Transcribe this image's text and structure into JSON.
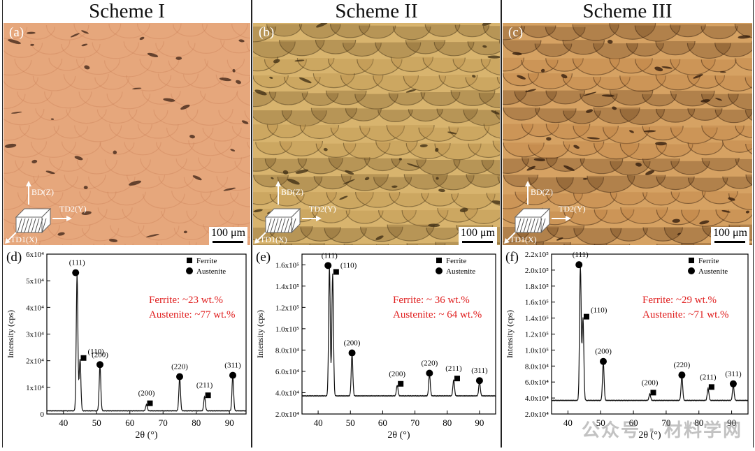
{
  "columns": [
    {
      "title": "Scheme I",
      "label": "(a)",
      "tone": [
        "#e6a77c",
        "#d48e65",
        "#c97f56"
      ],
      "dark": "#3a2014"
    },
    {
      "title": "Scheme II",
      "label": "(b)",
      "tone": [
        "#d8b46e",
        "#b88f4a",
        "#7a5c2c"
      ],
      "dark": "#3a2a12"
    },
    {
      "title": "Scheme III",
      "label": "(c)",
      "tone": [
        "#d6a263",
        "#b97d42",
        "#6e4420"
      ],
      "dark": "#2a1608"
    }
  ],
  "scalebar": "100 μm",
  "axes_labels": {
    "bd": "BD(Z)",
    "td2": "TD2(Y)",
    "td1": "TD1(X)"
  },
  "chart_data": [
    {
      "type": "line",
      "panel": "(d)",
      "xlabel": "2θ (°)",
      "ylabel": "Intensity (cps)",
      "xlim": [
        35,
        95
      ],
      "ylim": [
        0,
        60000
      ],
      "yticks": [
        {
          "v": 0,
          "t": "0"
        },
        {
          "v": 10000,
          "t": "1x10⁴"
        },
        {
          "v": 20000,
          "t": "2x10⁴"
        },
        {
          "v": 30000,
          "t": "3x10⁴"
        },
        {
          "v": 40000,
          "t": "4x10⁴"
        },
        {
          "v": 50000,
          "t": "5x10⁴"
        },
        {
          "v": 60000,
          "t": "6x10⁴"
        }
      ],
      "xticks": [
        40,
        50,
        60,
        70,
        80,
        90
      ],
      "baseline": 1200,
      "peaks": [
        {
          "x": 44.1,
          "y": 52500,
          "label": "(111)",
          "phase": "austenite"
        },
        {
          "x": 45.0,
          "y": 20500,
          "label": "(110)",
          "phase": "ferrite"
        },
        {
          "x": 51.0,
          "y": 18000,
          "label": "(200)",
          "phase": "austenite"
        },
        {
          "x": 65.0,
          "y": 3500,
          "label": "(200)",
          "phase": "ferrite"
        },
        {
          "x": 75.0,
          "y": 13500,
          "label": "(220)",
          "phase": "austenite"
        },
        {
          "x": 82.5,
          "y": 6500,
          "label": "(211)",
          "phase": "ferrite"
        },
        {
          "x": 91.0,
          "y": 14000,
          "label": "(311)",
          "phase": "austenite"
        }
      ],
      "legend": {
        "ferrite": "Ferrite",
        "austenite": "Austenite"
      },
      "annotation": [
        "Ferrite: ~23 wt.%",
        "Austenite: ~77 wt.%"
      ]
    },
    {
      "type": "line",
      "panel": "(e)",
      "xlabel": "2θ (°)",
      "ylabel": "Intensity (cps)",
      "xlim": [
        35,
        95
      ],
      "ylim": [
        20000,
        170000
      ],
      "yticks": [
        {
          "v": 20000,
          "t": "2.0x10⁴"
        },
        {
          "v": 40000,
          "t": "4.0x10⁴"
        },
        {
          "v": 60000,
          "t": "6.0x10⁴"
        },
        {
          "v": 80000,
          "t": "8.0x10⁴"
        },
        {
          "v": 100000,
          "t": "1.0x10⁵"
        },
        {
          "v": 120000,
          "t": "1.2x10⁵"
        },
        {
          "v": 140000,
          "t": "1.4x10⁵"
        },
        {
          "v": 160000,
          "t": "1.6x10⁵"
        }
      ],
      "xticks": [
        40,
        50,
        60,
        70,
        80,
        90
      ],
      "baseline": 37000,
      "peaks": [
        {
          "x": 43.5,
          "y": 158000,
          "label": "(111)",
          "phase": "austenite"
        },
        {
          "x": 44.5,
          "y": 152000,
          "label": "(110)",
          "phase": "ferrite"
        },
        {
          "x": 50.5,
          "y": 76000,
          "label": "(200)",
          "phase": "austenite"
        },
        {
          "x": 64.5,
          "y": 47000,
          "label": "(200)",
          "phase": "ferrite"
        },
        {
          "x": 74.5,
          "y": 57000,
          "label": "(220)",
          "phase": "austenite"
        },
        {
          "x": 82.0,
          "y": 52000,
          "label": "(211)",
          "phase": "ferrite"
        },
        {
          "x": 90.0,
          "y": 50000,
          "label": "(311)",
          "phase": "austenite"
        }
      ],
      "legend": {
        "ferrite": "Ferrite",
        "austenite": "Austenite"
      },
      "annotation": [
        "Ferrite: ~ 36 wt.%",
        "Austenite: ~ 64 wt.%"
      ]
    },
    {
      "type": "line",
      "panel": "(f)",
      "xlabel": "2θ (°)",
      "ylabel": "Intensity (cps)",
      "xlim": [
        35,
        95
      ],
      "ylim": [
        20000,
        220000
      ],
      "yticks": [
        {
          "v": 20000,
          "t": "2.0x10⁴"
        },
        {
          "v": 40000,
          "t": "4.0x10⁴"
        },
        {
          "v": 60000,
          "t": "6.0x10⁴"
        },
        {
          "v": 80000,
          "t": "8.0x10⁴"
        },
        {
          "v": 100000,
          "t": "1.0x10⁵"
        },
        {
          "v": 120000,
          "t": "1.2x10⁵"
        },
        {
          "v": 140000,
          "t": "1.4x10⁵"
        },
        {
          "v": 160000,
          "t": "1.6x10⁵"
        },
        {
          "v": 180000,
          "t": "1.8x10⁵"
        },
        {
          "v": 200000,
          "t": "2.0x10⁵"
        },
        {
          "v": 220000,
          "t": "2.2x10⁵"
        }
      ],
      "xticks": [
        40,
        50,
        60,
        70,
        80,
        90
      ],
      "baseline": 37000,
      "peaks": [
        {
          "x": 43.8,
          "y": 205000,
          "label": "(111)",
          "phase": "austenite"
        },
        {
          "x": 44.6,
          "y": 140000,
          "label": "(110)",
          "phase": "ferrite"
        },
        {
          "x": 50.8,
          "y": 84000,
          "label": "(200)",
          "phase": "austenite"
        },
        {
          "x": 65.0,
          "y": 45000,
          "label": "(200)",
          "phase": "ferrite"
        },
        {
          "x": 74.8,
          "y": 67000,
          "label": "(220)",
          "phase": "austenite"
        },
        {
          "x": 82.8,
          "y": 52000,
          "label": "(211)",
          "phase": "ferrite"
        },
        {
          "x": 90.5,
          "y": 56000,
          "label": "(311)",
          "phase": "austenite"
        }
      ],
      "legend": {
        "ferrite": "Ferrite",
        "austenite": "Austenite"
      },
      "annotation": [
        "Ferrite: ~29 wt.%",
        "Austenite: ~71 wt.%"
      ]
    }
  ],
  "annotation_color": "#e02020",
  "watermark": "公众号 · 材料学网"
}
